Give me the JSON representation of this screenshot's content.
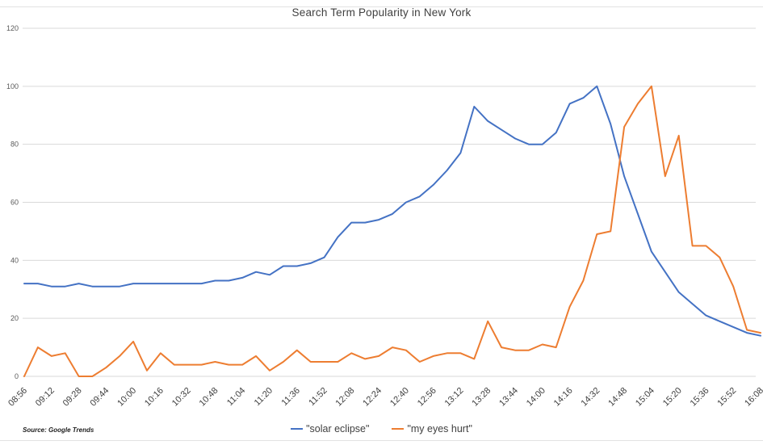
{
  "title": "Search Term Popularity in New York",
  "source_note": "Source: Google Trends",
  "colors": {
    "series_solar_eclipse": "#4472C4",
    "series_my_eyes_hurt": "#ED7D31",
    "gridline": "#D9D9D9",
    "y_axis_text": "#595959",
    "x_axis_text": "#404040",
    "title_text": "#404040"
  },
  "chart_data": {
    "type": "line",
    "title": "Search Term Popularity in New York",
    "xlabel": "",
    "ylabel": "",
    "ylim": [
      0,
      120
    ],
    "yticks": [
      0,
      20,
      40,
      60,
      80,
      100,
      120
    ],
    "grid": true,
    "legend_position": "bottom",
    "x": [
      "08:56",
      "09:04",
      "09:12",
      "09:20",
      "09:28",
      "09:36",
      "09:44",
      "09:52",
      "10:00",
      "10:08",
      "10:16",
      "10:24",
      "10:32",
      "10:40",
      "10:48",
      "10:56",
      "11:04",
      "11:12",
      "11:20",
      "11:28",
      "11:36",
      "11:44",
      "11:52",
      "12:00",
      "12:08",
      "12:16",
      "12:24",
      "12:32",
      "12:40",
      "12:48",
      "12:56",
      "13:04",
      "13:12",
      "13:20",
      "13:28",
      "13:36",
      "13:44",
      "13:52",
      "14:00",
      "14:08",
      "14:16",
      "14:24",
      "14:32",
      "14:40",
      "14:48",
      "14:56",
      "15:04",
      "15:12",
      "15:20",
      "15:28",
      "15:36",
      "15:44",
      "15:52",
      "16:00",
      "16:08"
    ],
    "x_tick_labels": [
      "08:56",
      "09:12",
      "09:28",
      "09:44",
      "10:00",
      "10:16",
      "10:32",
      "10:48",
      "11:04",
      "11:20",
      "11:36",
      "11:52",
      "12:08",
      "12:24",
      "12:40",
      "12:56",
      "13:12",
      "13:28",
      "13:44",
      "14:00",
      "14:16",
      "14:32",
      "14:48",
      "15:04",
      "15:20",
      "15:36",
      "15:52",
      "16:08"
    ],
    "series": [
      {
        "name": "\"solar eclipse\"",
        "color": "#4472C4",
        "values": [
          32,
          32,
          31,
          31,
          32,
          31,
          31,
          31,
          32,
          32,
          32,
          32,
          32,
          32,
          33,
          33,
          34,
          36,
          35,
          38,
          38,
          39,
          41,
          48,
          53,
          53,
          54,
          56,
          60,
          62,
          66,
          71,
          77,
          93,
          88,
          85,
          82,
          80,
          80,
          84,
          94,
          96,
          100,
          87,
          69,
          56,
          43,
          36,
          29,
          25,
          21,
          19,
          17,
          15,
          14
        ]
      },
      {
        "name": "\"my eyes hurt\"",
        "color": "#ED7D31",
        "values": [
          0,
          10,
          7,
          8,
          0,
          0,
          3,
          7,
          12,
          2,
          8,
          4,
          4,
          4,
          5,
          4,
          4,
          7,
          2,
          5,
          9,
          5,
          5,
          5,
          8,
          6,
          7,
          10,
          9,
          5,
          7,
          8,
          8,
          6,
          19,
          10,
          9,
          9,
          11,
          10,
          24,
          33,
          49,
          50,
          86,
          94,
          100,
          69,
          83,
          45,
          45,
          41,
          31,
          16,
          15
        ]
      }
    ]
  }
}
